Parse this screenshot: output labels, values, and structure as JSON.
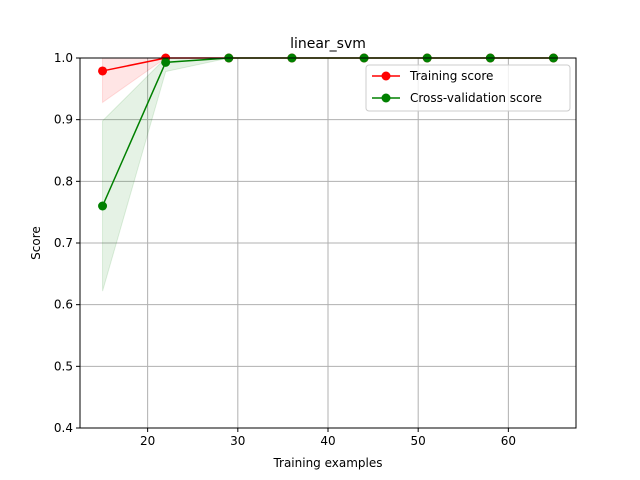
{
  "chart_data": {
    "type": "line",
    "title": "linear_svm",
    "xlabel": "Training examples",
    "ylabel": "Score",
    "xlim": [
      12.5,
      67.5
    ],
    "ylim": [
      0.4,
      1.0
    ],
    "xticks": [
      20,
      30,
      40,
      50,
      60
    ],
    "yticks": [
      0.4,
      0.5,
      0.6,
      0.7,
      0.8,
      0.9,
      1.0
    ],
    "grid": true,
    "legend_position": "top-right",
    "x": [
      15,
      22,
      29,
      36,
      44,
      51,
      58,
      65
    ],
    "series": [
      {
        "name": "Training score",
        "color": "#ff0000",
        "values": [
          0.979,
          1.0,
          1.0,
          1.0,
          1.0,
          1.0,
          1.0,
          1.0
        ],
        "band_lower": [
          0.928,
          1.0,
          1.0,
          1.0,
          1.0,
          1.0,
          1.0,
          1.0
        ],
        "band_upper": [
          1.0,
          1.0,
          1.0,
          1.0,
          1.0,
          1.0,
          1.0,
          1.0
        ]
      },
      {
        "name": "Cross-validation score",
        "color": "#008000",
        "values": [
          0.76,
          0.993,
          1.0,
          1.0,
          1.0,
          1.0,
          1.0,
          1.0
        ],
        "band_lower": [
          0.622,
          0.978,
          1.0,
          1.0,
          1.0,
          1.0,
          1.0,
          1.0
        ],
        "band_upper": [
          0.898,
          1.0,
          1.0,
          1.0,
          1.0,
          1.0,
          1.0,
          1.0
        ]
      }
    ]
  }
}
